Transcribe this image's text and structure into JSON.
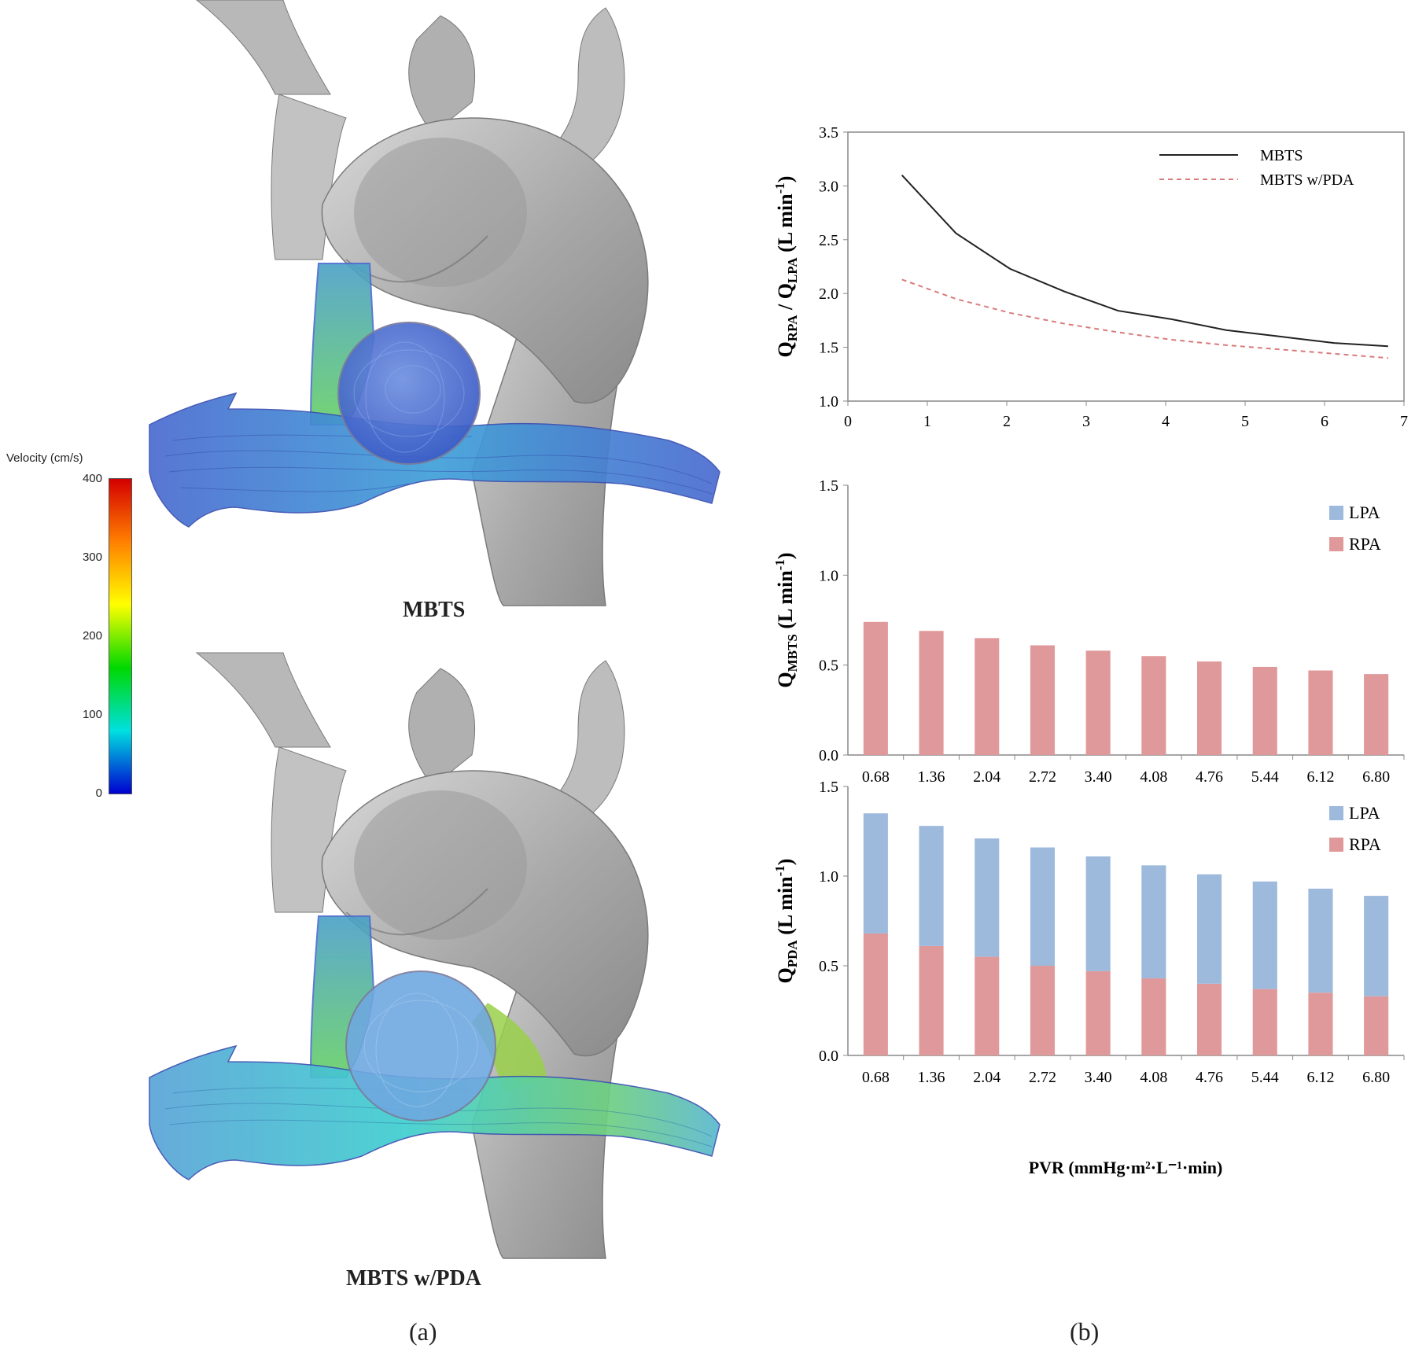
{
  "left_panel": {
    "colorbar": {
      "title": "Velocity (cm/s)",
      "ticks": [
        "400",
        "300",
        "200",
        "100",
        "0"
      ],
      "colors": [
        "#d40000",
        "#ff8000",
        "#ffff00",
        "#00d800",
        "#00e0e0",
        "#0000d0"
      ]
    },
    "captions": {
      "top": "MBTS",
      "bottom": "MBTS w/PDA"
    },
    "panel_label": "(a)"
  },
  "right_panel": {
    "panel_label": "(b)"
  },
  "chart_data": [
    {
      "type": "line",
      "ylabel_main": "Q",
      "ylabel_sub1": "RPA",
      "ylabel_mid": " / Q",
      "ylabel_sub2": "LPA",
      "ylabel_unit": " (L min",
      "ylabel_sup": "-1",
      "ylabel_end": ")",
      "xlim": [
        0,
        7
      ],
      "ylim": [
        1.0,
        3.5
      ],
      "xticks": [
        "0",
        "1",
        "2",
        "3",
        "4",
        "5",
        "6",
        "7"
      ],
      "yticks": [
        "1.0",
        "1.5",
        "2.0",
        "2.5",
        "3.0",
        "3.5"
      ],
      "x": [
        0.68,
        1.36,
        2.04,
        2.72,
        3.4,
        4.08,
        4.76,
        5.44,
        6.12,
        6.8
      ],
      "series": [
        {
          "name": "MBTS",
          "color": "#222222",
          "dash": "",
          "values": [
            3.1,
            2.56,
            2.23,
            2.02,
            1.84,
            1.76,
            1.66,
            1.6,
            1.54,
            1.51
          ]
        },
        {
          "name": "MBTS w/PDA",
          "color": "#d97b7b",
          "dash": "6,5",
          "values": [
            2.13,
            1.95,
            1.82,
            1.72,
            1.64,
            1.57,
            1.52,
            1.48,
            1.44,
            1.4
          ]
        }
      ]
    },
    {
      "type": "bar",
      "stacked": true,
      "ylabel_main": "Q",
      "ylabel_sub": "MBTS",
      "ylabel_unit": " (L min",
      "ylabel_sup": "-1",
      "ylabel_end": ")",
      "ylim": [
        0.0,
        1.5
      ],
      "yticks": [
        "0.0",
        "0.5",
        "1.0",
        "1.5"
      ],
      "categories": [
        "0.68",
        "1.36",
        "2.04",
        "2.72",
        "3.40",
        "4.08",
        "4.76",
        "5.44",
        "6.12",
        "6.80"
      ],
      "series": [
        {
          "name": "RPA",
          "color": "#e0999a",
          "values": [
            0.74,
            0.69,
            0.65,
            0.61,
            0.58,
            0.55,
            0.52,
            0.49,
            0.47,
            0.45
          ]
        },
        {
          "name": "LPA",
          "color": "#9db9dc",
          "values": [
            0,
            0,
            0,
            0,
            0,
            0,
            0,
            0,
            0,
            0
          ]
        }
      ],
      "legend": [
        "LPA",
        "RPA"
      ]
    },
    {
      "type": "bar",
      "stacked": true,
      "ylabel_main": "Q",
      "ylabel_sub": "PDA",
      "ylabel_unit": " (L min",
      "ylabel_sup": "-1",
      "ylabel_end": ")",
      "xlabel": "PVR (mmHg·m²·L⁻¹·min)",
      "ylim": [
        0.0,
        1.5
      ],
      "yticks": [
        "0.0",
        "0.5",
        "1.0",
        "1.5"
      ],
      "categories": [
        "0.68",
        "1.36",
        "2.04",
        "2.72",
        "3.40",
        "4.08",
        "4.76",
        "5.44",
        "6.12",
        "6.80"
      ],
      "series": [
        {
          "name": "RPA",
          "color": "#e0999a",
          "values": [
            0.68,
            0.61,
            0.55,
            0.5,
            0.47,
            0.43,
            0.4,
            0.37,
            0.35,
            0.33
          ]
        },
        {
          "name": "LPA",
          "color": "#9db9dc",
          "values": [
            0.67,
            0.67,
            0.66,
            0.66,
            0.64,
            0.63,
            0.61,
            0.6,
            0.58,
            0.56
          ]
        }
      ],
      "legend": [
        "LPA",
        "RPA"
      ]
    }
  ]
}
